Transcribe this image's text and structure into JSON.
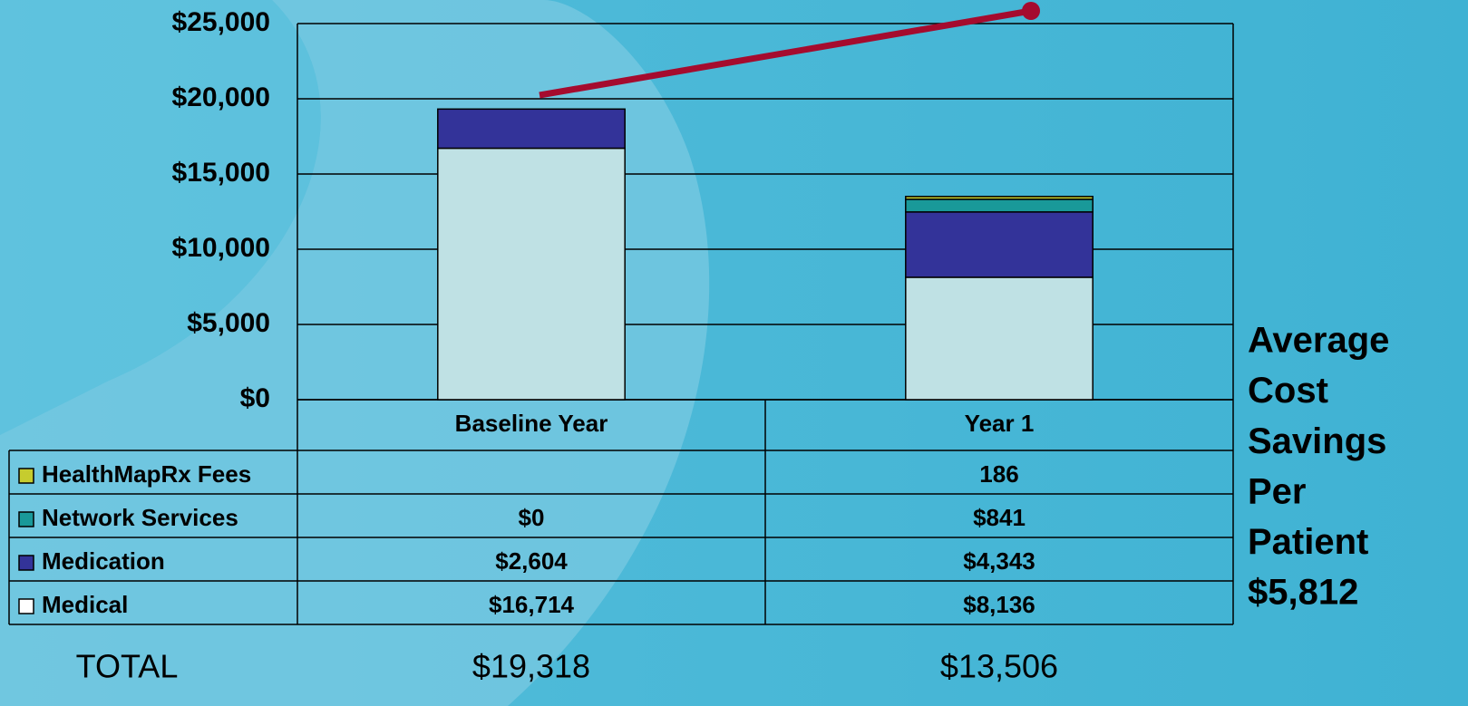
{
  "chart_data": {
    "type": "stacked-bar",
    "categories": [
      "Baseline Year",
      "Year 1"
    ],
    "series": [
      {
        "name": "Medical",
        "color": "#bfe1e4",
        "values": [
          16714,
          8136
        ],
        "value_labels": [
          "$16,714",
          "$8,136"
        ]
      },
      {
        "name": "Medication",
        "color": "#333399",
        "values": [
          2604,
          4343
        ],
        "value_labels": [
          "$2,604",
          "$4,343"
        ]
      },
      {
        "name": "Network Services",
        "color": "#199999",
        "values": [
          0,
          841
        ],
        "value_labels": [
          "$0",
          "$841"
        ]
      },
      {
        "name": "HealthMapRx Fees",
        "color": "#c6cc2e",
        "values": [
          null,
          186
        ],
        "value_labels": [
          null,
          "186"
        ]
      }
    ],
    "ylim": [
      0,
      25000
    ],
    "yticks": [
      {
        "value": 0,
        "label": "$0"
      },
      {
        "value": 5000,
        "label": "$5,000"
      },
      {
        "value": 10000,
        "label": "$10,000"
      },
      {
        "value": 15000,
        "label": "$15,000"
      },
      {
        "value": 20000,
        "label": "$20,000"
      },
      {
        "value": 25000,
        "label": "$25,000"
      }
    ],
    "grid": true,
    "totals_label": "TOTAL",
    "totals": [
      19318,
      13506
    ],
    "totals_labels": [
      "$19,318",
      "$13,506"
    ],
    "annotation": [
      "Average",
      "Cost",
      "Savings",
      "Per",
      "Patient",
      "$5,812"
    ]
  }
}
